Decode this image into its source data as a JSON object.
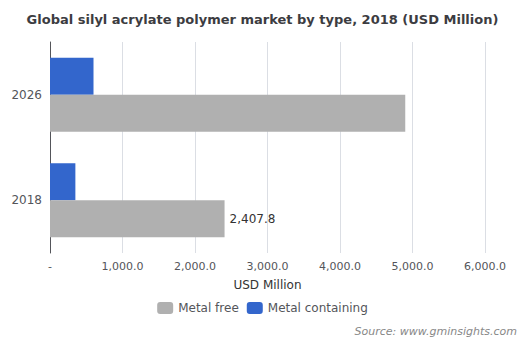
{
  "chart_data": {
    "type": "bar",
    "orientation": "horizontal",
    "title": "Global silyl acrylate polymer market by type, 2018 (USD Million)",
    "categories": [
      "2018",
      "2026"
    ],
    "series": [
      {
        "name": "Metal free",
        "color": "#b0b0b0",
        "values": [
          2407.8,
          4900
        ]
      },
      {
        "name": "Metal containing",
        "color": "#3366cc",
        "values": [
          350,
          600
        ]
      }
    ],
    "xlabel": "USD Million",
    "xlim": [
      0,
      6000
    ],
    "xticks": [
      {
        "value": 0,
        "label": "-"
      },
      {
        "value": 1000,
        "label": "1,000.0"
      },
      {
        "value": 2000,
        "label": "2,000.0"
      },
      {
        "value": 3000,
        "label": "3,000.0"
      },
      {
        "value": 4000,
        "label": "4,000.0"
      },
      {
        "value": 5000,
        "label": "5,000.0"
      },
      {
        "value": 6000,
        "label": "6,000.0"
      }
    ],
    "annotations": [
      {
        "text": "2,407.8",
        "series": "Metal free",
        "category": "2018",
        "x": 2407.8
      }
    ],
    "source": "Source: www.gminsights.com",
    "grid": true,
    "legend": "bottom"
  }
}
